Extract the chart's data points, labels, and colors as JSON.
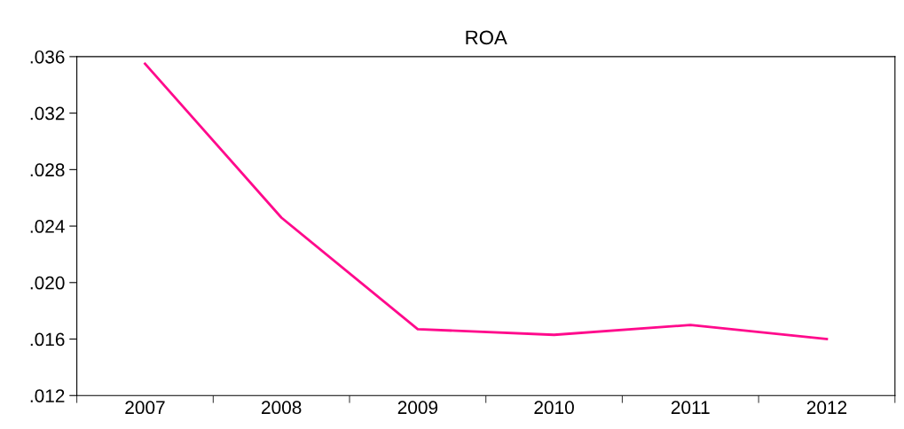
{
  "chart_data": {
    "type": "line",
    "title": "ROA",
    "categories": [
      "2007",
      "2008",
      "2009",
      "2010",
      "2011",
      "2012"
    ],
    "series": [
      {
        "color": "#ff0a8c",
        "values": [
          0.0355,
          0.0246,
          0.0167,
          0.0163,
          0.017,
          0.016
        ]
      }
    ],
    "ylim": [
      0.012,
      0.036
    ],
    "yticks": [
      {
        "value": 0.012,
        "label": ".012"
      },
      {
        "value": 0.016,
        "label": ".016"
      },
      {
        "value": 0.02,
        "label": ".020"
      },
      {
        "value": 0.024,
        "label": ".024"
      },
      {
        "value": 0.028,
        "label": ".028"
      },
      {
        "value": 0.032,
        "label": ".032"
      },
      {
        "value": 0.036,
        "label": ".036"
      }
    ],
    "grid": false,
    "marker": "none",
    "line_style": "solid"
  }
}
